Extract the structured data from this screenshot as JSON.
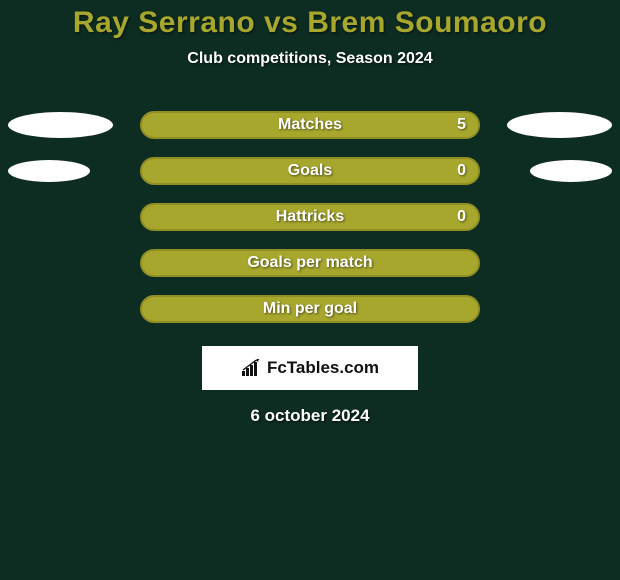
{
  "background_color": "#0d2c22",
  "title": {
    "text": "Ray Serrano vs Brem Soumaoro",
    "color": "#a7a72e",
    "fontsize": 30
  },
  "subtitle": {
    "text": "Club competitions, Season 2024",
    "fontsize": 16
  },
  "bar_style": {
    "fill": "#a7a72e",
    "border": "#8f8f24",
    "label_fontsize": 16
  },
  "ellipse_style": {
    "color": "#ffffff",
    "width_large": 105,
    "height_large": 26,
    "width_small": 82,
    "height_small": 22
  },
  "stats": [
    {
      "label": "Matches",
      "value_right": "5",
      "ellipse_left": "large",
      "ellipse_right": "large"
    },
    {
      "label": "Goals",
      "value_right": "0",
      "ellipse_left": "small",
      "ellipse_right": "small"
    },
    {
      "label": "Hattricks",
      "value_right": "0",
      "ellipse_left": "none",
      "ellipse_right": "none"
    },
    {
      "label": "Goals per match",
      "value_right": "",
      "ellipse_left": "none",
      "ellipse_right": "none"
    },
    {
      "label": "Min per goal",
      "value_right": "",
      "ellipse_left": "none",
      "ellipse_right": "none"
    }
  ],
  "logo": {
    "text": "FcTables.com",
    "fontsize": 17,
    "icon_color": "#111111"
  },
  "date": {
    "text": "6 october 2024",
    "fontsize": 17
  }
}
